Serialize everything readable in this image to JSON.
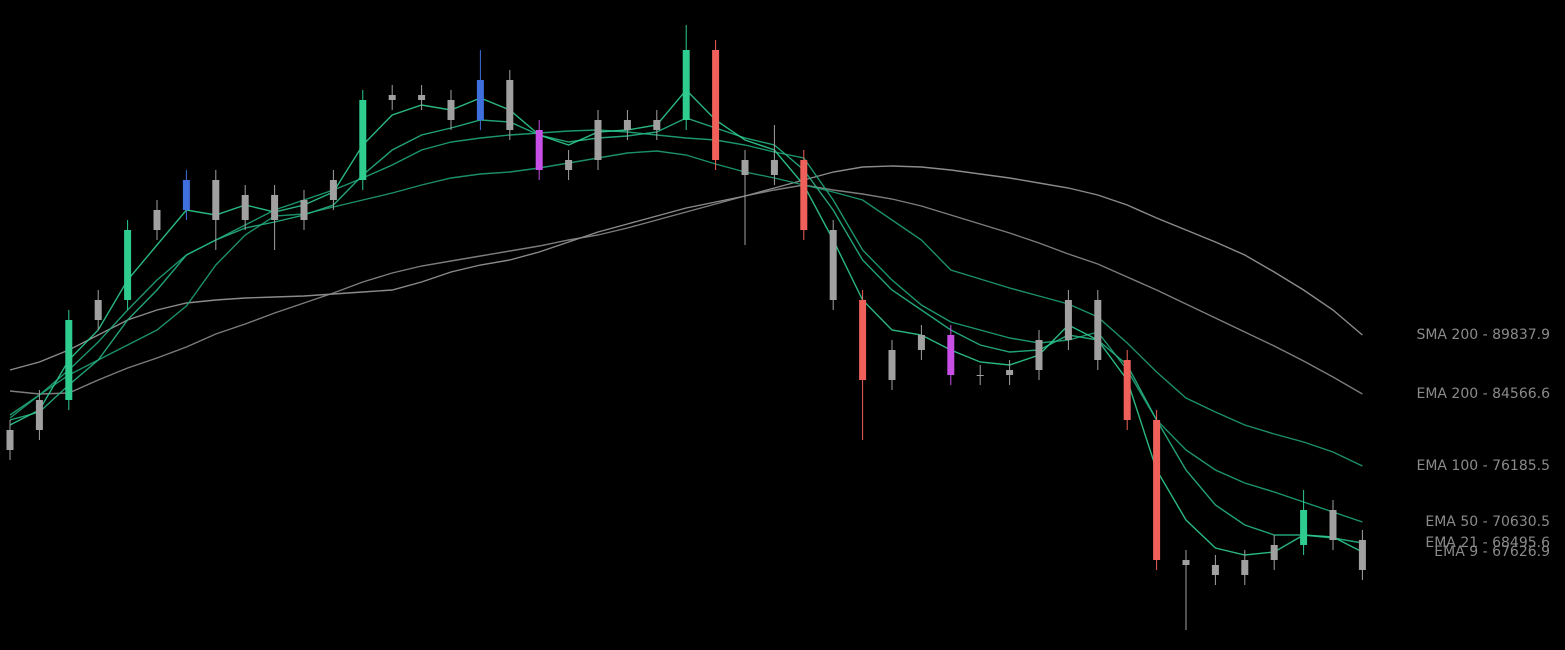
{
  "chart_data": {
    "type": "candlestick",
    "ylim": [
      56750,
      127730
    ],
    "candles": {
      "open": [
        78590,
        80774,
        84050,
        92786,
        94970,
        102614,
        104798,
        108074,
        103706,
        106436,
        103706,
        105890,
        108074,
        116810,
        117356,
        116810,
        114626,
        118994,
        113534,
        109166,
        110258,
        114626,
        113534,
        114626,
        122270,
        110258,
        108620,
        110258,
        102614,
        94970,
        86234,
        89510,
        91148,
        86780,
        86780,
        87326,
        90602,
        94970,
        88418,
        81866,
        66578,
        66032,
        64940,
        66578,
        68216,
        72038,
        68762
      ],
      "high": [
        81866,
        85142,
        93878,
        96062,
        103706,
        105890,
        109166,
        109166,
        107528,
        107528,
        106982,
        109166,
        117902,
        118448,
        118448,
        117902,
        122270,
        120086,
        114626,
        111350,
        115718,
        115718,
        115718,
        125000,
        123362,
        111350,
        114080,
        111350,
        103706,
        96062,
        90602,
        92240,
        92240,
        87872,
        88418,
        91694,
        96062,
        96062,
        89510,
        82958,
        67670,
        67124,
        67670,
        69308,
        74224,
        73130,
        69854
      ],
      "low": [
        77498,
        79682,
        82958,
        91694,
        93878,
        101522,
        103706,
        100430,
        102614,
        100430,
        102614,
        104798,
        106982,
        115718,
        115718,
        113534,
        113534,
        112442,
        108074,
        108074,
        109166,
        112442,
        112442,
        113534,
        109166,
        100970,
        107528,
        101522,
        93878,
        79682,
        85142,
        88418,
        85688,
        85688,
        85688,
        86234,
        89510,
        87326,
        80774,
        65486,
        58934,
        63848,
        63848,
        65486,
        67124,
        67670,
        64394
      ],
      "close": [
        80774,
        84050,
        92786,
        94970,
        102614,
        104798,
        108074,
        103706,
        106436,
        103706,
        105890,
        108074,
        116810,
        117356,
        116810,
        114626,
        118994,
        113534,
        109166,
        110258,
        114626,
        113534,
        114626,
        122270,
        110258,
        108620,
        110258,
        102614,
        94970,
        86234,
        89510,
        91148,
        86780,
        86780,
        87326,
        90602,
        94970,
        88418,
        81866,
        66578,
        66032,
        64940,
        66578,
        68216,
        72038,
        68762,
        65486
      ],
      "colors": [
        "#a0a0a0",
        "#a0a0a0",
        "#2ecc8f",
        "#a0a0a0",
        "#2ecc8f",
        "#a0a0a0",
        "#3f6fdc",
        "#a0a0a0",
        "#a0a0a0",
        "#a0a0a0",
        "#a0a0a0",
        "#a0a0a0",
        "#2ecc8f",
        "#a0a0a0",
        "#a0a0a0",
        "#a0a0a0",
        "#3f6fdc",
        "#a0a0a0",
        "#c84fe6",
        "#a0a0a0",
        "#a0a0a0",
        "#a0a0a0",
        "#a0a0a0",
        "#2ecc8f",
        "#f0605a",
        "#a0a0a0",
        "#a0a0a0",
        "#f0605a",
        "#a0a0a0",
        "#f0605a",
        "#a0a0a0",
        "#a0a0a0",
        "#c84fe6",
        "#a0a0a0",
        "#a0a0a0",
        "#a0a0a0",
        "#a0a0a0",
        "#a0a0a0",
        "#f0605a",
        "#f0605a",
        "#a0a0a0",
        "#a0a0a0",
        "#a0a0a0",
        "#a0a0a0",
        "#2ecc8f",
        "#a0a0a0",
        "#a0a0a0"
      ]
    },
    "series": [
      {
        "name": "SMA 200 - 89837.9",
        "color": "#9a9a9a",
        "values": [
          87326,
          88200,
          89510,
          91148,
          92786,
          93878,
          94642,
          94970,
          95188,
          95298,
          95407,
          95625,
          95844,
          96062,
          96936,
          98028,
          98792,
          99338,
          100212,
          101304,
          102396,
          103269,
          104143,
          105016,
          105672,
          106327,
          107200,
          108074,
          108948,
          109494,
          109603,
          109494,
          109166,
          108729,
          108292,
          107746,
          107200,
          106436,
          105344,
          103924,
          102614,
          101304,
          99884,
          98028,
          96062,
          93878,
          91148
        ]
      },
      {
        "name": "EMA 200 - 84566.6",
        "color": "#8a8a8a",
        "values": [
          85033,
          84705,
          84814,
          86234,
          87544,
          88636,
          89838,
          91257,
          92349,
          93550,
          94642,
          95734,
          96936,
          97918,
          98683,
          99229,
          99775,
          100321,
          100867,
          101522,
          102068,
          102832,
          103706,
          104580,
          105453,
          106327,
          106982,
          107528,
          106982,
          106545,
          105999,
          105235,
          104252,
          103269,
          102286,
          101194,
          99993,
          98901,
          97482,
          96062,
          94533,
          93004,
          91476,
          89947,
          88309,
          86562,
          84705
        ]
      },
      {
        "name": "EMA 100 - 76185.5",
        "color": "#1f9e74",
        "values": [
          82084,
          84596,
          86780,
          88418,
          90056,
          91694,
          94315,
          98792,
          102068,
          104143,
          104361,
          105126,
          105890,
          106654,
          107528,
          108292,
          108729,
          108948,
          109384,
          109930,
          110476,
          111022,
          111241,
          110804,
          109821,
          108948,
          108292,
          107528,
          106764,
          105890,
          103706,
          101522,
          98246,
          97263,
          96280,
          95407,
          94533,
          93114,
          90274,
          87108,
          84268,
          82740,
          81320,
          80337,
          79464,
          78372,
          76843
        ]
      },
      {
        "name": "EMA 50 - 70630.5",
        "color": "#1fa67a",
        "values": [
          82412,
          84596,
          87326,
          90384,
          93878,
          97154,
          99884,
          101522,
          103160,
          104798,
          105890,
          106982,
          108292,
          109712,
          111350,
          112224,
          112660,
          112988,
          113206,
          113425,
          113534,
          113316,
          112988,
          112660,
          112442,
          111896,
          111132,
          110476,
          105890,
          100430,
          97154,
          94424,
          92568,
          91694,
          90820,
          90274,
          90602,
          91476,
          87326,
          81866,
          78590,
          76406,
          74986,
          74004,
          72912,
          71820,
          70728
        ]
      },
      {
        "name": "EMA 21 - 68495.6",
        "color": "#26b583",
        "values": [
          81866,
          82740,
          85688,
          88418,
          92786,
          96062,
          99884,
          101522,
          102832,
          103488,
          104252,
          105344,
          108620,
          111350,
          112988,
          113752,
          114626,
          114408,
          112988,
          112224,
          112660,
          112879,
          113316,
          114844,
          113752,
          112660,
          111896,
          109166,
          104798,
          99338,
          96062,
          93878,
          91694,
          90056,
          89292,
          89510,
          91148,
          90602,
          87872,
          81866,
          76406,
          72584,
          70400,
          69308,
          69308,
          68980,
          68434
        ]
      },
      {
        "name": "EMA 9 - 67626.9",
        "color": "#2ecc8f",
        "values": [
          81320,
          82958,
          88418,
          91694,
          97154,
          100976,
          104798,
          104252,
          105344,
          104580,
          105344,
          106764,
          111896,
          115172,
          116264,
          115718,
          117028,
          115718,
          112988,
          111896,
          113316,
          113534,
          114080,
          117902,
          114626,
          112442,
          111350,
          107528,
          101522,
          94970,
          91694,
          91148,
          89510,
          88200,
          87872,
          88964,
          92240,
          90602,
          86234,
          76406,
          70946,
          67888,
          67124,
          67452,
          69308,
          69090,
          67452
        ]
      }
    ]
  }
}
